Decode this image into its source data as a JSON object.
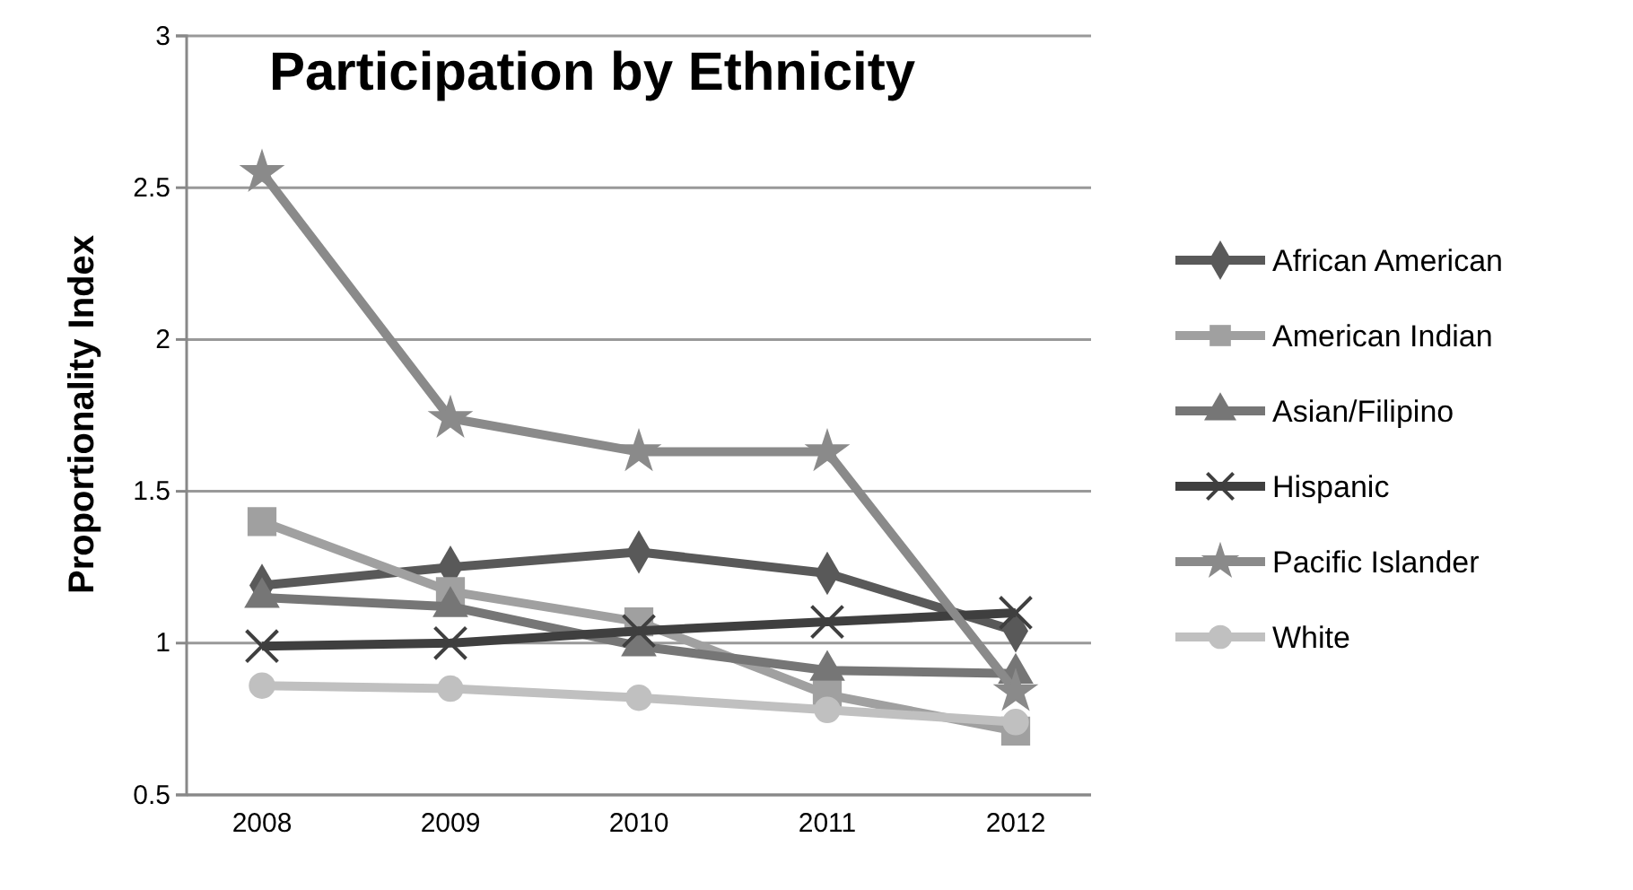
{
  "chart_data": {
    "type": "line",
    "title": "Participation by Ethnicity",
    "ylabel": "Proportionality Index",
    "categories": [
      "2008",
      "2009",
      "2010",
      "2011",
      "2012"
    ],
    "series": [
      {
        "name": "African American",
        "color": "#595959",
        "marker": "diamond",
        "values": [
          1.19,
          1.25,
          1.3,
          1.23,
          1.04
        ]
      },
      {
        "name": "American Indian",
        "color": "#a0a0a0",
        "marker": "square",
        "values": [
          1.4,
          1.17,
          1.07,
          0.83,
          0.71
        ]
      },
      {
        "name": "Asian/Filipino",
        "color": "#767676",
        "marker": "triangle",
        "values": [
          1.15,
          1.12,
          0.99,
          0.91,
          0.9
        ]
      },
      {
        "name": "Hispanic",
        "color": "#3f3f3f",
        "marker": "cross",
        "values": [
          0.99,
          1.0,
          1.04,
          1.07,
          1.1
        ]
      },
      {
        "name": "Pacific Islander",
        "color": "#8a8a8a",
        "marker": "star",
        "values": [
          2.55,
          1.74,
          1.63,
          1.63,
          0.84
        ]
      },
      {
        "name": "White",
        "color": "#c0c0c0",
        "marker": "circle",
        "values": [
          0.86,
          0.85,
          0.82,
          0.78,
          0.74
        ]
      }
    ],
    "ylim": [
      0.5,
      3
    ],
    "yticks": [
      0.5,
      1,
      1.5,
      2,
      2.5,
      3
    ],
    "grid": "y",
    "legend": "right"
  }
}
